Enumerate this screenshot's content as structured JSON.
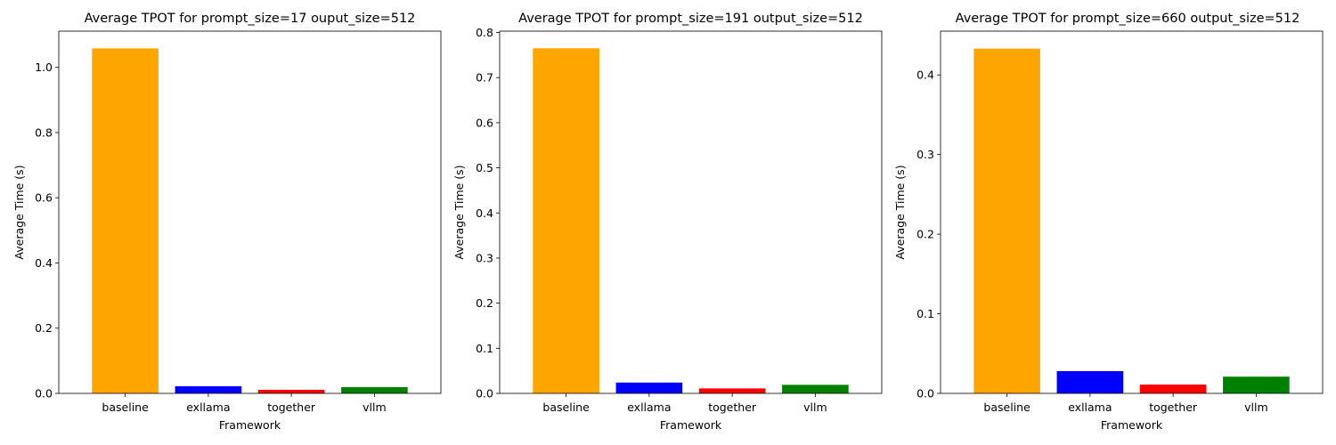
{
  "chart_data": [
    {
      "type": "bar",
      "title": "Average TPOT for prompt_size=17 ouput_size=512",
      "xlabel": "Framework",
      "ylabel": "Average Time (s)",
      "categories": [
        "baseline",
        "exllama",
        "together",
        "vllm"
      ],
      "values": [
        1.058,
        0.022,
        0.011,
        0.019
      ],
      "colors": [
        "#FFA500",
        "#0000FF",
        "#FF0000",
        "#008000"
      ],
      "ylim": [
        0,
        1.111
      ],
      "yticks": [
        0.0,
        0.2,
        0.4,
        0.6,
        0.8,
        1.0
      ],
      "ytick_labels": [
        "0.0",
        "0.2",
        "0.4",
        "0.6",
        "0.8",
        "1.0"
      ],
      "grid": false
    },
    {
      "type": "bar",
      "title": "Average TPOT for prompt_size=191 output_size=512",
      "xlabel": "Framework",
      "ylabel": "Average Time (s)",
      "categories": [
        "baseline",
        "exllama",
        "together",
        "vllm"
      ],
      "values": [
        0.765,
        0.024,
        0.011,
        0.019
      ],
      "colors": [
        "#FFA500",
        "#0000FF",
        "#FF0000",
        "#008000"
      ],
      "ylim": [
        0,
        0.803
      ],
      "yticks": [
        0.0,
        0.1,
        0.2,
        0.3,
        0.4,
        0.5,
        0.6,
        0.7,
        0.8
      ],
      "ytick_labels": [
        "0.0",
        "0.1",
        "0.2",
        "0.3",
        "0.4",
        "0.5",
        "0.6",
        "0.7",
        "0.8"
      ],
      "grid": false
    },
    {
      "type": "bar",
      "title": "Average TPOT for prompt_size=660 output_size=512",
      "xlabel": "Framework",
      "ylabel": "Average Time (s)",
      "categories": [
        "baseline",
        "exllama",
        "together",
        "vllm"
      ],
      "values": [
        0.433,
        0.028,
        0.011,
        0.021
      ],
      "colors": [
        "#FFA500",
        "#0000FF",
        "#FF0000",
        "#008000"
      ],
      "ylim": [
        0,
        0.455
      ],
      "yticks": [
        0.0,
        0.1,
        0.2,
        0.3,
        0.4
      ],
      "ytick_labels": [
        "0.0",
        "0.1",
        "0.2",
        "0.3",
        "0.4"
      ],
      "grid": false
    }
  ]
}
